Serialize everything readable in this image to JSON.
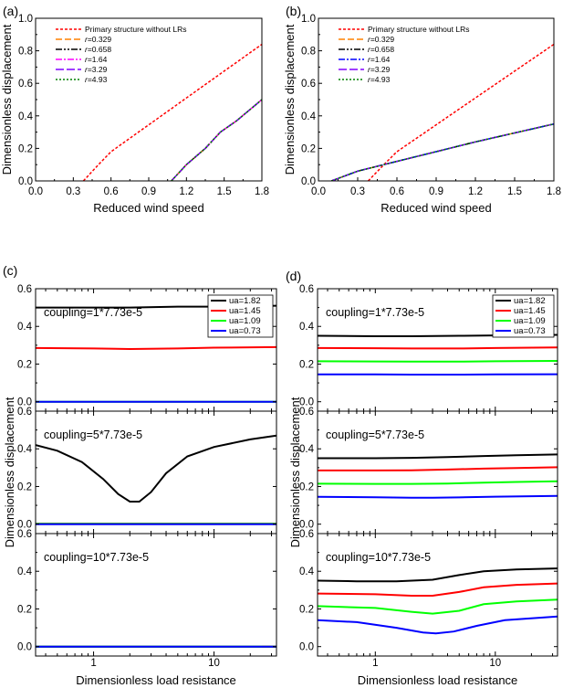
{
  "chart_data": [
    {
      "panel": "(a)",
      "type": "line",
      "xlabel": "Reduced wind speed",
      "ylabel": "Dimensionless displacement",
      "xlim": [
        0.0,
        1.8
      ],
      "ylim": [
        0.0,
        1.0
      ],
      "xticks": [
        "0.0",
        "0.3",
        "0.6",
        "0.9",
        "1.2",
        "1.5",
        "1.8"
      ],
      "yticks": [
        "0.0",
        "0.2",
        "0.4",
        "0.6",
        "0.8",
        "1.0"
      ],
      "legend": [
        "Primary structure without LRs",
        "r=0.329",
        "r=0.658",
        "r=1.64",
        "r=3.29",
        "r=4.93"
      ],
      "series": [
        {
          "name": "Primary structure without LRs",
          "color": "#ff0000",
          "dash": "3,2",
          "x": [
            0.38,
            0.5,
            0.6,
            0.8,
            1.0,
            1.2,
            1.4,
            1.6,
            1.8
          ],
          "y": [
            0.0,
            0.1,
            0.18,
            0.29,
            0.4,
            0.51,
            0.62,
            0.73,
            0.84
          ]
        },
        {
          "name": "r=0.329",
          "color": "#ff8000",
          "dash": "7,3",
          "x": [
            1.08,
            1.2,
            1.35,
            1.47,
            1.6,
            1.8
          ],
          "y": [
            0.0,
            0.1,
            0.2,
            0.3,
            0.37,
            0.5
          ]
        },
        {
          "name": "r=0.658",
          "color": "#000000",
          "dash": "7,2,2,2,2,2",
          "x": [
            1.08,
            1.2,
            1.35,
            1.47,
            1.6,
            1.8
          ],
          "y": [
            0.0,
            0.1,
            0.2,
            0.3,
            0.37,
            0.5
          ]
        },
        {
          "name": "r=1.64",
          "color": "#ff00ff",
          "dash": "7,2,2,2",
          "x": [
            1.08,
            1.2,
            1.35,
            1.47,
            1.6,
            1.8
          ],
          "y": [
            0.0,
            0.1,
            0.2,
            0.3,
            0.37,
            0.5
          ]
        },
        {
          "name": "r=3.29",
          "color": "#8000ff",
          "dash": "9,3",
          "x": [
            1.08,
            1.2,
            1.35,
            1.47,
            1.6,
            1.8
          ],
          "y": [
            0.0,
            0.1,
            0.2,
            0.3,
            0.37,
            0.5
          ]
        },
        {
          "name": "r=4.93",
          "color": "#008000",
          "dash": "2,2",
          "x": [
            1.08,
            1.2,
            1.35,
            1.47,
            1.6,
            1.8
          ],
          "y": [
            0.0,
            0.1,
            0.2,
            0.3,
            0.37,
            0.5
          ]
        }
      ]
    },
    {
      "panel": "(b)",
      "type": "line",
      "xlabel": "Reduced wind speed",
      "ylabel": "Dimensionless displacement",
      "xlim": [
        0.0,
        1.8
      ],
      "ylim": [
        0.0,
        1.0
      ],
      "xticks": [
        "0.0",
        "0.3",
        "0.6",
        "0.9",
        "1.2",
        "1.5",
        "1.8"
      ],
      "yticks": [
        "0.0",
        "0.2",
        "0.4",
        "0.6",
        "0.8",
        "1.0"
      ],
      "legend": [
        "Primary structure without LRs",
        "r=0.329",
        "r=0.658",
        "r=1.64",
        "r=3.29",
        "r=4.93"
      ],
      "series": [
        {
          "name": "Primary structure without LRs",
          "color": "#ff0000",
          "dash": "3,2",
          "x": [
            0.38,
            0.5,
            0.6,
            0.8,
            1.0,
            1.2,
            1.4,
            1.6,
            1.8
          ],
          "y": [
            0.0,
            0.1,
            0.18,
            0.29,
            0.4,
            0.51,
            0.62,
            0.73,
            0.84
          ]
        },
        {
          "name": "r=0.329",
          "color": "#ff8000",
          "dash": "7,3",
          "x": [
            0.1,
            0.3,
            0.6,
            0.9,
            1.2,
            1.5,
            1.8
          ],
          "y": [
            0.0,
            0.06,
            0.12,
            0.18,
            0.24,
            0.295,
            0.35
          ]
        },
        {
          "name": "r=0.658",
          "color": "#000000",
          "dash": "7,2,2,2,2,2",
          "x": [
            0.1,
            0.3,
            0.6,
            0.9,
            1.2,
            1.5,
            1.8
          ],
          "y": [
            0.0,
            0.06,
            0.12,
            0.18,
            0.24,
            0.295,
            0.35
          ]
        },
        {
          "name": "r=1.64",
          "color": "#0000ff",
          "dash": "7,2,2,2",
          "x": [
            0.1,
            0.3,
            0.6,
            0.9,
            1.2,
            1.5,
            1.8
          ],
          "y": [
            0.0,
            0.06,
            0.12,
            0.18,
            0.24,
            0.295,
            0.35
          ]
        },
        {
          "name": "r=3.29",
          "color": "#8000ff",
          "dash": "9,3",
          "x": [
            0.1,
            0.3,
            0.6,
            0.9,
            1.2,
            1.5,
            1.8
          ],
          "y": [
            0.0,
            0.06,
            0.12,
            0.18,
            0.24,
            0.295,
            0.35
          ]
        },
        {
          "name": "r=4.93",
          "color": "#008000",
          "dash": "2,2",
          "x": [
            0.1,
            0.3,
            0.6,
            0.9,
            1.2,
            1.5,
            1.8
          ],
          "y": [
            0.0,
            0.06,
            0.12,
            0.18,
            0.24,
            0.295,
            0.35
          ]
        }
      ]
    },
    {
      "panel": "(c)",
      "type": "line",
      "xscale": "log",
      "xlabel": "Dimensionless load resistance",
      "ylabel": "Dimensionless displacement",
      "xlim": [
        0.33,
        33
      ],
      "xticks": [
        "1",
        "10"
      ],
      "yticks": [
        "0.0",
        "0.2",
        "0.4",
        "0.6"
      ],
      "ylim": [
        -0.05,
        0.6
      ],
      "legend": [
        "ua=1.82",
        "ua=1.45",
        "ua=1.09",
        "ua=0.73"
      ],
      "subplots": [
        {
          "annotation": "coupling=1*7.73e-5",
          "series": [
            {
              "name": "ua=1.82",
              "color": "#000000",
              "x": [
                0.33,
                1,
                2,
                5,
                10,
                33
              ],
              "y": [
                0.5,
                0.5,
                0.5,
                0.505,
                0.505,
                0.51
              ]
            },
            {
              "name": "ua=1.45",
              "color": "#ff0000",
              "x": [
                0.33,
                1,
                2,
                5,
                10,
                33
              ],
              "y": [
                0.285,
                0.283,
                0.28,
                0.283,
                0.287,
                0.29
              ]
            },
            {
              "name": "ua=1.09",
              "color": "#00ff00",
              "x": [
                0.33,
                33
              ],
              "y": [
                0.0,
                0.0
              ]
            },
            {
              "name": "ua=0.73",
              "color": "#0000ff",
              "x": [
                0.33,
                33
              ],
              "y": [
                0.0,
                0.0
              ]
            }
          ]
        },
        {
          "annotation": "coupling=5*7.73e-5",
          "series": [
            {
              "name": "ua=1.82",
              "color": "#000000",
              "x": [
                0.33,
                0.5,
                0.8,
                1.2,
                1.6,
                2.0,
                2.4,
                3,
                4,
                6,
                10,
                20,
                33
              ],
              "y": [
                0.42,
                0.39,
                0.33,
                0.24,
                0.16,
                0.12,
                0.12,
                0.17,
                0.27,
                0.36,
                0.41,
                0.45,
                0.47
              ]
            },
            {
              "name": "ua=1.45",
              "color": "#ff0000",
              "x": [
                0.33,
                33
              ],
              "y": [
                0.003,
                0.003
              ]
            },
            {
              "name": "ua=1.09",
              "color": "#00ff00",
              "x": [
                0.33,
                33
              ],
              "y": [
                0.002,
                0.002
              ]
            },
            {
              "name": "ua=0.73",
              "color": "#0000ff",
              "x": [
                0.33,
                33
              ],
              "y": [
                0.0,
                0.0
              ]
            }
          ]
        },
        {
          "annotation": "coupling=10*7.73e-5",
          "series": [
            {
              "name": "ua=1.82",
              "color": "#000000",
              "x": [
                0.33,
                33
              ],
              "y": [
                0.0,
                0.0
              ]
            },
            {
              "name": "ua=1.45",
              "color": "#ff0000",
              "x": [
                25,
                33
              ],
              "y": [
                0.0,
                0.0
              ]
            },
            {
              "name": "ua=1.09",
              "color": "#00ff00",
              "x": [
                0.33,
                33
              ],
              "y": [
                0.0,
                0.0
              ]
            },
            {
              "name": "ua=0.73",
              "color": "#0000ff",
              "x": [
                0.33,
                33
              ],
              "y": [
                0.0,
                0.0
              ]
            }
          ]
        }
      ]
    },
    {
      "panel": "(d)",
      "type": "line",
      "xscale": "log",
      "xlabel": "Dimensionless load resistance",
      "ylabel": "Dimensionless displacement",
      "xlim": [
        0.33,
        33
      ],
      "xticks": [
        "1",
        "10"
      ],
      "yticks": [
        "0.0",
        "0.2",
        "0.4",
        "0.6"
      ],
      "ylim": [
        -0.05,
        0.6
      ],
      "legend": [
        "ua=1.82",
        "ua=1.45",
        "ua=1.09",
        "ua=0.73"
      ],
      "subplots": [
        {
          "annotation": "coupling=1*7.73e-5",
          "series": [
            {
              "name": "ua=1.82",
              "color": "#000000",
              "x": [
                0.33,
                1,
                2,
                5,
                10,
                33
              ],
              "y": [
                0.35,
                0.348,
                0.348,
                0.35,
                0.352,
                0.355
              ]
            },
            {
              "name": "ua=1.45",
              "color": "#ff0000",
              "x": [
                0.33,
                1,
                2,
                5,
                10,
                33
              ],
              "y": [
                0.285,
                0.284,
                0.283,
                0.283,
                0.285,
                0.288
              ]
            },
            {
              "name": "ua=1.09",
              "color": "#00ff00",
              "x": [
                0.33,
                1,
                2,
                5,
                10,
                33
              ],
              "y": [
                0.215,
                0.214,
                0.213,
                0.213,
                0.215,
                0.217
              ]
            },
            {
              "name": "ua=0.73",
              "color": "#0000ff",
              "x": [
                0.33,
                1,
                2,
                5,
                10,
                33
              ],
              "y": [
                0.145,
                0.145,
                0.144,
                0.144,
                0.145,
                0.146
              ]
            }
          ]
        },
        {
          "annotation": "coupling=5*7.73e-5",
          "series": [
            {
              "name": "ua=1.82",
              "color": "#000000",
              "x": [
                0.33,
                1,
                2,
                4,
                8,
                15,
                33
              ],
              "y": [
                0.35,
                0.35,
                0.352,
                0.356,
                0.362,
                0.366,
                0.37
              ]
            },
            {
              "name": "ua=1.45",
              "color": "#ff0000",
              "x": [
                0.33,
                1,
                2,
                4,
                8,
                15,
                33
              ],
              "y": [
                0.285,
                0.285,
                0.286,
                0.29,
                0.295,
                0.298,
                0.302
              ]
            },
            {
              "name": "ua=1.09",
              "color": "#00ff00",
              "x": [
                0.33,
                1,
                2,
                4,
                8,
                15,
                33
              ],
              "y": [
                0.215,
                0.214,
                0.214,
                0.216,
                0.22,
                0.224,
                0.228
              ]
            },
            {
              "name": "ua=0.73",
              "color": "#0000ff",
              "x": [
                0.33,
                1,
                2,
                3,
                5,
                10,
                33
              ],
              "y": [
                0.145,
                0.143,
                0.14,
                0.14,
                0.142,
                0.146,
                0.15
              ]
            }
          ]
        },
        {
          "annotation": "coupling=10*7.73e-5",
          "series": [
            {
              "name": "ua=1.82",
              "color": "#000000",
              "x": [
                0.33,
                0.7,
                1.5,
                3,
                5,
                8,
                15,
                33
              ],
              "y": [
                0.35,
                0.347,
                0.347,
                0.355,
                0.38,
                0.4,
                0.41,
                0.415
              ]
            },
            {
              "name": "ua=1.45",
              "color": "#ff0000",
              "x": [
                0.33,
                1,
                2,
                3,
                5,
                8,
                15,
                33
              ],
              "y": [
                0.282,
                0.278,
                0.27,
                0.27,
                0.29,
                0.315,
                0.328,
                0.335
              ]
            },
            {
              "name": "ua=1.09",
              "color": "#00ff00",
              "x": [
                0.33,
                1,
                2,
                3,
                5,
                8,
                15,
                33
              ],
              "y": [
                0.215,
                0.205,
                0.185,
                0.175,
                0.19,
                0.225,
                0.24,
                0.25
              ]
            },
            {
              "name": "ua=0.73",
              "color": "#0000ff",
              "x": [
                0.33,
                0.7,
                1.5,
                2.5,
                3.2,
                4.5,
                7,
                12,
                33
              ],
              "y": [
                0.14,
                0.13,
                0.1,
                0.075,
                0.07,
                0.08,
                0.11,
                0.14,
                0.16
              ]
            }
          ]
        }
      ]
    }
  ]
}
